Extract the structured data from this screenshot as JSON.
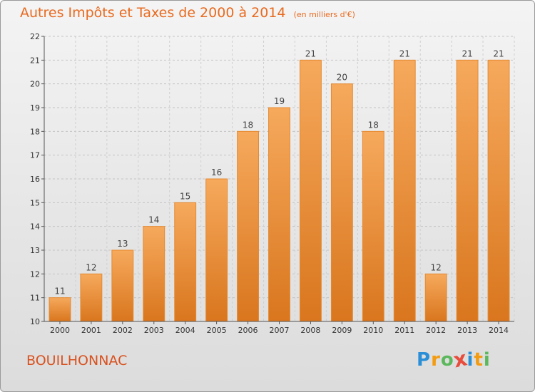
{
  "header": {
    "title": "Autres Impôts et Taxes de 2000 à 2014",
    "unit": "(en milliers d'€)"
  },
  "footer": {
    "location": "BOUILHONNAC",
    "brand_letters": [
      "P",
      "r",
      "o",
      "x",
      "i",
      "t",
      "i"
    ],
    "brand_colors": [
      "#2a8fd6",
      "#f39c12",
      "#5cb85c",
      "#e74c3c",
      "#2a8fd6",
      "#f39c12",
      "#5cb85c"
    ]
  },
  "colors": {
    "bar_light": "#f6a95c",
    "bar_dark": "#d9761e",
    "bar_edge": "#e58a30",
    "title": "#e86a1f"
  },
  "chart_data": {
    "type": "bar",
    "title": "Autres Impôts et Taxes de 2000 à 2014",
    "subtitle": "(en milliers d'€)",
    "categories": [
      "2000",
      "2001",
      "2002",
      "2003",
      "2004",
      "2005",
      "2006",
      "2007",
      "2008",
      "2009",
      "2010",
      "2011",
      "2012",
      "2013",
      "2014"
    ],
    "values": [
      11,
      12,
      13,
      14,
      15,
      16,
      18,
      19,
      21,
      20,
      18,
      21,
      12,
      21,
      21
    ],
    "ylim": [
      10,
      22
    ],
    "yticks": [
      10,
      11,
      12,
      13,
      14,
      15,
      16,
      17,
      18,
      19,
      20,
      21,
      22
    ],
    "grid": true,
    "data_labels": true
  }
}
